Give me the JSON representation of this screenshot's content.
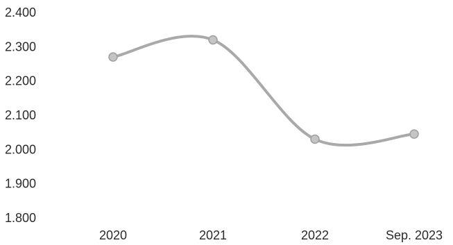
{
  "chart_data": {
    "type": "line",
    "title": "",
    "xlabel": "",
    "ylabel": "",
    "categories": [
      "2020",
      "2021",
      "2022",
      "Sep. 2023"
    ],
    "series": [
      {
        "values": [
          2270,
          2320,
          2030,
          2045
        ]
      }
    ],
    "y_ticks": [
      "2.400",
      "2.300",
      "2.200",
      "2.100",
      "2.000",
      "1.900",
      "1.800"
    ],
    "y_tick_values": [
      2400,
      2300,
      2200,
      2100,
      2000,
      1900,
      1800
    ],
    "ylim": [
      1800,
      2400
    ],
    "grid": false,
    "legend": "none",
    "colors": {
      "line": "#a9a9a9",
      "marker": "#c4c4c4",
      "text": "#2a2a2a"
    }
  }
}
